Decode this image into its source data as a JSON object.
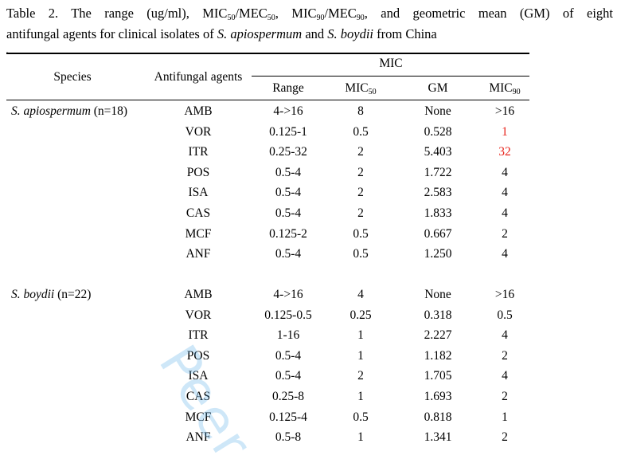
{
  "caption": {
    "line1_prefix": "Table 2. The range (ug/ml), MIC",
    "s50": "50",
    "slash1": "/MEC",
    "s50b": "50",
    "comma1": ", MIC",
    "s90": "90",
    "slash2": "/MEC",
    "s90b": "90",
    "line1_suffix": ", and geometric mean (GM) of eight",
    "line2_prefix": "antifungal agents for clinical isolates of ",
    "species1": "S. apiospermum",
    "and_text": " and ",
    "species2": "S. boydii",
    "line2_suffix": " from China",
    "dot": "."
  },
  "table": {
    "header": {
      "species": "Species",
      "agents": "Antifungal agents",
      "mic_group": "MIC",
      "range": "Range",
      "mic50_base": "MIC",
      "mic50_sub": "50",
      "gm": "GM",
      "mic90_base": "MIC",
      "mic90_sub": "90"
    },
    "groups": [
      {
        "species_italic": "S. apiospermum",
        "species_n": " (n=18)",
        "rows": [
          {
            "agent": "AMB",
            "range": "4->16",
            "mic50": "8",
            "gm": "None",
            "mic90": ">16"
          },
          {
            "agent": "VOR",
            "range": "0.125-1",
            "mic50": "0.5",
            "gm": "0.528",
            "mic90": "1"
          },
          {
            "agent": "ITR",
            "range": "0.25-32",
            "mic50": "2",
            "gm": "5.403",
            "mic90": "32"
          },
          {
            "agent": "POS",
            "range": "0.5-4",
            "mic50": "2",
            "gm": "1.722",
            "mic90": "4"
          },
          {
            "agent": "ISA",
            "range": "0.5-4",
            "mic50": "2",
            "gm": "2.583",
            "mic90": "4"
          },
          {
            "agent": "CAS",
            "range": "0.5-4",
            "mic50": "2",
            "gm": "1.833",
            "mic90": "4"
          },
          {
            "agent": "MCF",
            "range": "0.125-2",
            "mic50": "0.5",
            "gm": "0.667",
            "mic90": "2"
          },
          {
            "agent": "ANF",
            "range": "0.5-4",
            "mic50": "0.5",
            "gm": "1.250",
            "mic90": "4"
          }
        ]
      },
      {
        "species_italic": "S. boydii",
        "species_n": " (n=22)",
        "rows": [
          {
            "agent": "AMB",
            "range": "4->16",
            "mic50": "4",
            "gm": "None",
            "mic90": ">16"
          },
          {
            "agent": "VOR",
            "range": "0.125-0.5",
            "mic50": "0.25",
            "gm": "0.318",
            "mic90": "0.5"
          },
          {
            "agent": "ITR",
            "range": "1-16",
            "mic50": "1",
            "gm": "2.227",
            "mic90": "4"
          },
          {
            "agent": "POS",
            "range": "0.5-4",
            "mic50": "1",
            "gm": "1.182",
            "mic90": "2"
          },
          {
            "agent": "ISA",
            "range": "0.5-4",
            "mic50": "2",
            "gm": "1.705",
            "mic90": "4"
          },
          {
            "agent": "CAS",
            "range": "0.25-8",
            "mic50": "1",
            "gm": "1.693",
            "mic90": "2"
          },
          {
            "agent": "MCF",
            "range": "0.125-4",
            "mic50": "0.5",
            "gm": "0.818",
            "mic90": "1"
          },
          {
            "agent": "ANF",
            "range": "0.5-8",
            "mic50": "1",
            "gm": "1.341",
            "mic90": "2"
          }
        ]
      }
    ],
    "highlight_color": "#e8231b",
    "highlighted_cells": [
      "groups.0.rows.1.mic90",
      "groups.0.rows.2.mic90"
    ]
  },
  "watermark": {
    "text": "Peer",
    "color": "#50aae6"
  }
}
